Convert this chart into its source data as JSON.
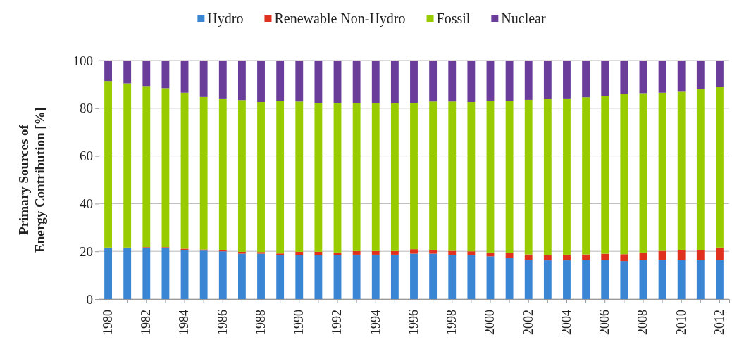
{
  "chart_data": {
    "type": "bar",
    "stacked": true,
    "ylabel": "Primary Sources of Energy Contribution [%]",
    "categories": [
      "1980",
      null,
      "1982",
      null,
      "1984",
      null,
      "1986",
      null,
      "1988",
      null,
      "1990",
      null,
      "1992",
      null,
      "1994",
      null,
      "1996",
      null,
      "1998",
      null,
      "2000",
      null,
      "2002",
      null,
      "2004",
      null,
      "2006",
      null,
      "2008",
      null,
      "2010",
      null,
      "2012"
    ],
    "series": [
      {
        "name": "Hydro",
        "color": "#3a86d4",
        "values": [
          21.3,
          21.3,
          21.6,
          21.6,
          20.6,
          20.3,
          20.0,
          19.0,
          19.0,
          18.3,
          18.3,
          18.3,
          18.3,
          18.6,
          18.6,
          18.6,
          19.0,
          19.0,
          18.4,
          18.4,
          17.9,
          17.2,
          16.5,
          16.2,
          16.2,
          16.4,
          16.4,
          15.9,
          16.4,
          16.5,
          16.4,
          16.4,
          16.4
        ]
      },
      {
        "name": "Renewable Non-Hydro",
        "color": "#e0301e",
        "values": [
          0.3,
          0.3,
          0.2,
          0.2,
          0.5,
          0.5,
          0.6,
          0.8,
          0.7,
          0.8,
          1.5,
          1.5,
          1.2,
          1.5,
          1.5,
          1.5,
          1.9,
          1.6,
          1.8,
          1.6,
          1.6,
          2.2,
          2.2,
          2.2,
          2.4,
          2.3,
          2.6,
          2.9,
          3.1,
          3.7,
          4.0,
          4.2,
          5.2
        ]
      },
      {
        "name": "Fossil",
        "color": "#99cc00",
        "values": [
          69.8,
          68.8,
          67.5,
          66.6,
          65.4,
          63.9,
          63.5,
          63.6,
          62.9,
          64.0,
          63.0,
          62.5,
          62.8,
          62.0,
          62.0,
          61.9,
          61.4,
          62.2,
          62.6,
          62.6,
          63.7,
          63.5,
          64.8,
          65.5,
          65.5,
          65.9,
          66.1,
          67.1,
          66.8,
          66.3,
          66.5,
          67.3,
          67.3
        ]
      },
      {
        "name": "Nuclear",
        "color": "#6a3d9a",
        "values": [
          8.6,
          9.6,
          10.7,
          11.6,
          13.5,
          15.3,
          15.9,
          16.6,
          17.4,
          16.9,
          17.2,
          17.7,
          17.7,
          17.9,
          17.9,
          18.0,
          17.7,
          17.2,
          17.2,
          17.4,
          16.8,
          17.1,
          16.5,
          16.1,
          15.9,
          15.4,
          14.9,
          14.1,
          13.7,
          13.5,
          13.1,
          12.1,
          11.1
        ]
      }
    ],
    "ylim": [
      0,
      100
    ],
    "yticks": [
      0,
      20,
      40,
      60,
      80,
      100
    ],
    "grid": "y",
    "legend": "top"
  }
}
